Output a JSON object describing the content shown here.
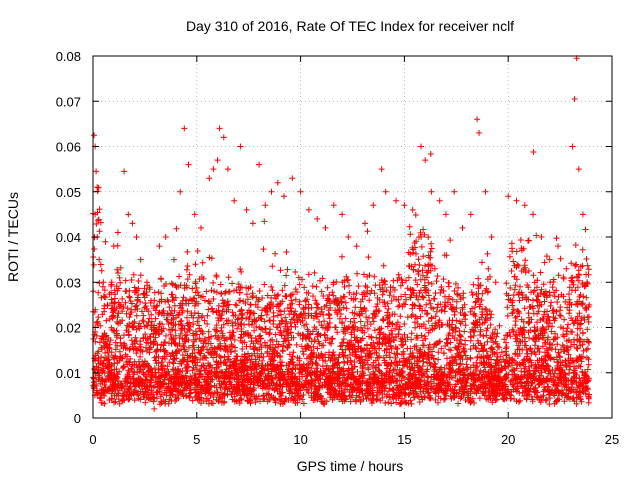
{
  "chart_data": {
    "type": "scatter",
    "title": "Day 310 of 2016, Rate Of TEC Index for receiver nclf",
    "xlabel": "GPS time / hours",
    "ylabel": "ROTI / TECUs",
    "xlim": [
      0,
      25
    ],
    "ylim": [
      0,
      0.08
    ],
    "xticks": [
      0,
      5,
      10,
      15,
      20,
      25
    ],
    "xtick_labels": [
      "0",
      "5",
      "10",
      "15",
      "20",
      "25"
    ],
    "yticks": [
      0,
      0.01,
      0.02,
      0.03,
      0.04,
      0.05,
      0.06,
      0.07,
      0.08
    ],
    "ytick_labels": [
      "0",
      "0.01",
      "0.02",
      "0.03",
      "0.04",
      "0.05",
      "0.06",
      "0.07",
      "0.08"
    ],
    "grid": true,
    "marker": "+",
    "color": "#ff0000",
    "series": [
      {
        "name": "ROTI",
        "points": [
          [
            0.05,
            0.0625
          ],
          [
            0.1,
            0.06
          ],
          [
            0.15,
            0.0545
          ],
          [
            0.2,
            0.051
          ],
          [
            0.1,
            0.045
          ],
          [
            0.2,
            0.04
          ],
          [
            0.3,
            0.035
          ],
          [
            0.5,
            0.03
          ],
          [
            0.7,
            0.025
          ],
          [
            0.9,
            0.03
          ],
          [
            1.0,
            0.038
          ],
          [
            1.2,
            0.041
          ],
          [
            1.5,
            0.0545
          ],
          [
            1.7,
            0.045
          ],
          [
            1.9,
            0.043
          ],
          [
            2.1,
            0.04
          ],
          [
            2.3,
            0.035
          ],
          [
            2.6,
            0.03
          ],
          [
            2.9,
            0.02
          ],
          [
            2.95,
            0.002
          ],
          [
            3.2,
            0.038
          ],
          [
            3.5,
            0.04
          ],
          [
            3.9,
            0.035
          ],
          [
            4.2,
            0.05
          ],
          [
            4.4,
            0.064
          ],
          [
            4.6,
            0.056
          ],
          [
            4.9,
            0.045
          ],
          [
            5.2,
            0.042
          ],
          [
            5.6,
            0.053
          ],
          [
            5.8,
            0.055
          ],
          [
            6.0,
            0.057
          ],
          [
            6.1,
            0.064
          ],
          [
            6.3,
            0.062
          ],
          [
            6.5,
            0.055
          ],
          [
            6.8,
            0.048
          ],
          [
            7.1,
            0.06
          ],
          [
            7.4,
            0.046
          ],
          [
            7.7,
            0.043
          ],
          [
            8.0,
            0.056
          ],
          [
            8.3,
            0.047
          ],
          [
            8.6,
            0.05
          ],
          [
            8.9,
            0.052
          ],
          [
            9.2,
            0.049
          ],
          [
            9.6,
            0.053
          ],
          [
            10.0,
            0.05
          ],
          [
            10.4,
            0.046
          ],
          [
            10.8,
            0.044
          ],
          [
            11.2,
            0.042
          ],
          [
            11.6,
            0.047
          ],
          [
            12.0,
            0.045
          ],
          [
            12.3,
            0.04
          ],
          [
            12.7,
            0.038
          ],
          [
            13.1,
            0.043
          ],
          [
            13.5,
            0.047
          ],
          [
            13.9,
            0.055
          ],
          [
            14.1,
            0.05
          ],
          [
            14.6,
            0.048
          ],
          [
            15.0,
            0.047
          ],
          [
            15.4,
            0.046
          ],
          [
            15.8,
            0.06
          ],
          [
            16.0,
            0.057
          ],
          [
            16.3,
            0.05
          ],
          [
            16.7,
            0.048
          ],
          [
            17.0,
            0.045
          ],
          [
            17.4,
            0.05
          ],
          [
            17.8,
            0.042
          ],
          [
            18.2,
            0.045
          ],
          [
            18.5,
            0.066
          ],
          [
            18.6,
            0.063
          ],
          [
            18.9,
            0.05
          ],
          [
            19.2,
            0.04
          ],
          [
            19.4,
            0.03
          ],
          [
            20.0,
            0.049
          ],
          [
            20.4,
            0.048
          ],
          [
            20.8,
            0.047
          ],
          [
            21.2,
            0.045
          ],
          [
            21.6,
            0.04
          ],
          [
            22.0,
            0.035
          ],
          [
            22.4,
            0.038
          ],
          [
            22.8,
            0.033
          ],
          [
            23.1,
            0.06
          ],
          [
            23.2,
            0.0705
          ],
          [
            23.3,
            0.0795
          ],
          [
            23.4,
            0.055
          ],
          [
            23.6,
            0.045
          ],
          [
            23.8,
            0.03
          ],
          [
            23.9,
            0.025
          ]
        ]
      }
    ]
  }
}
